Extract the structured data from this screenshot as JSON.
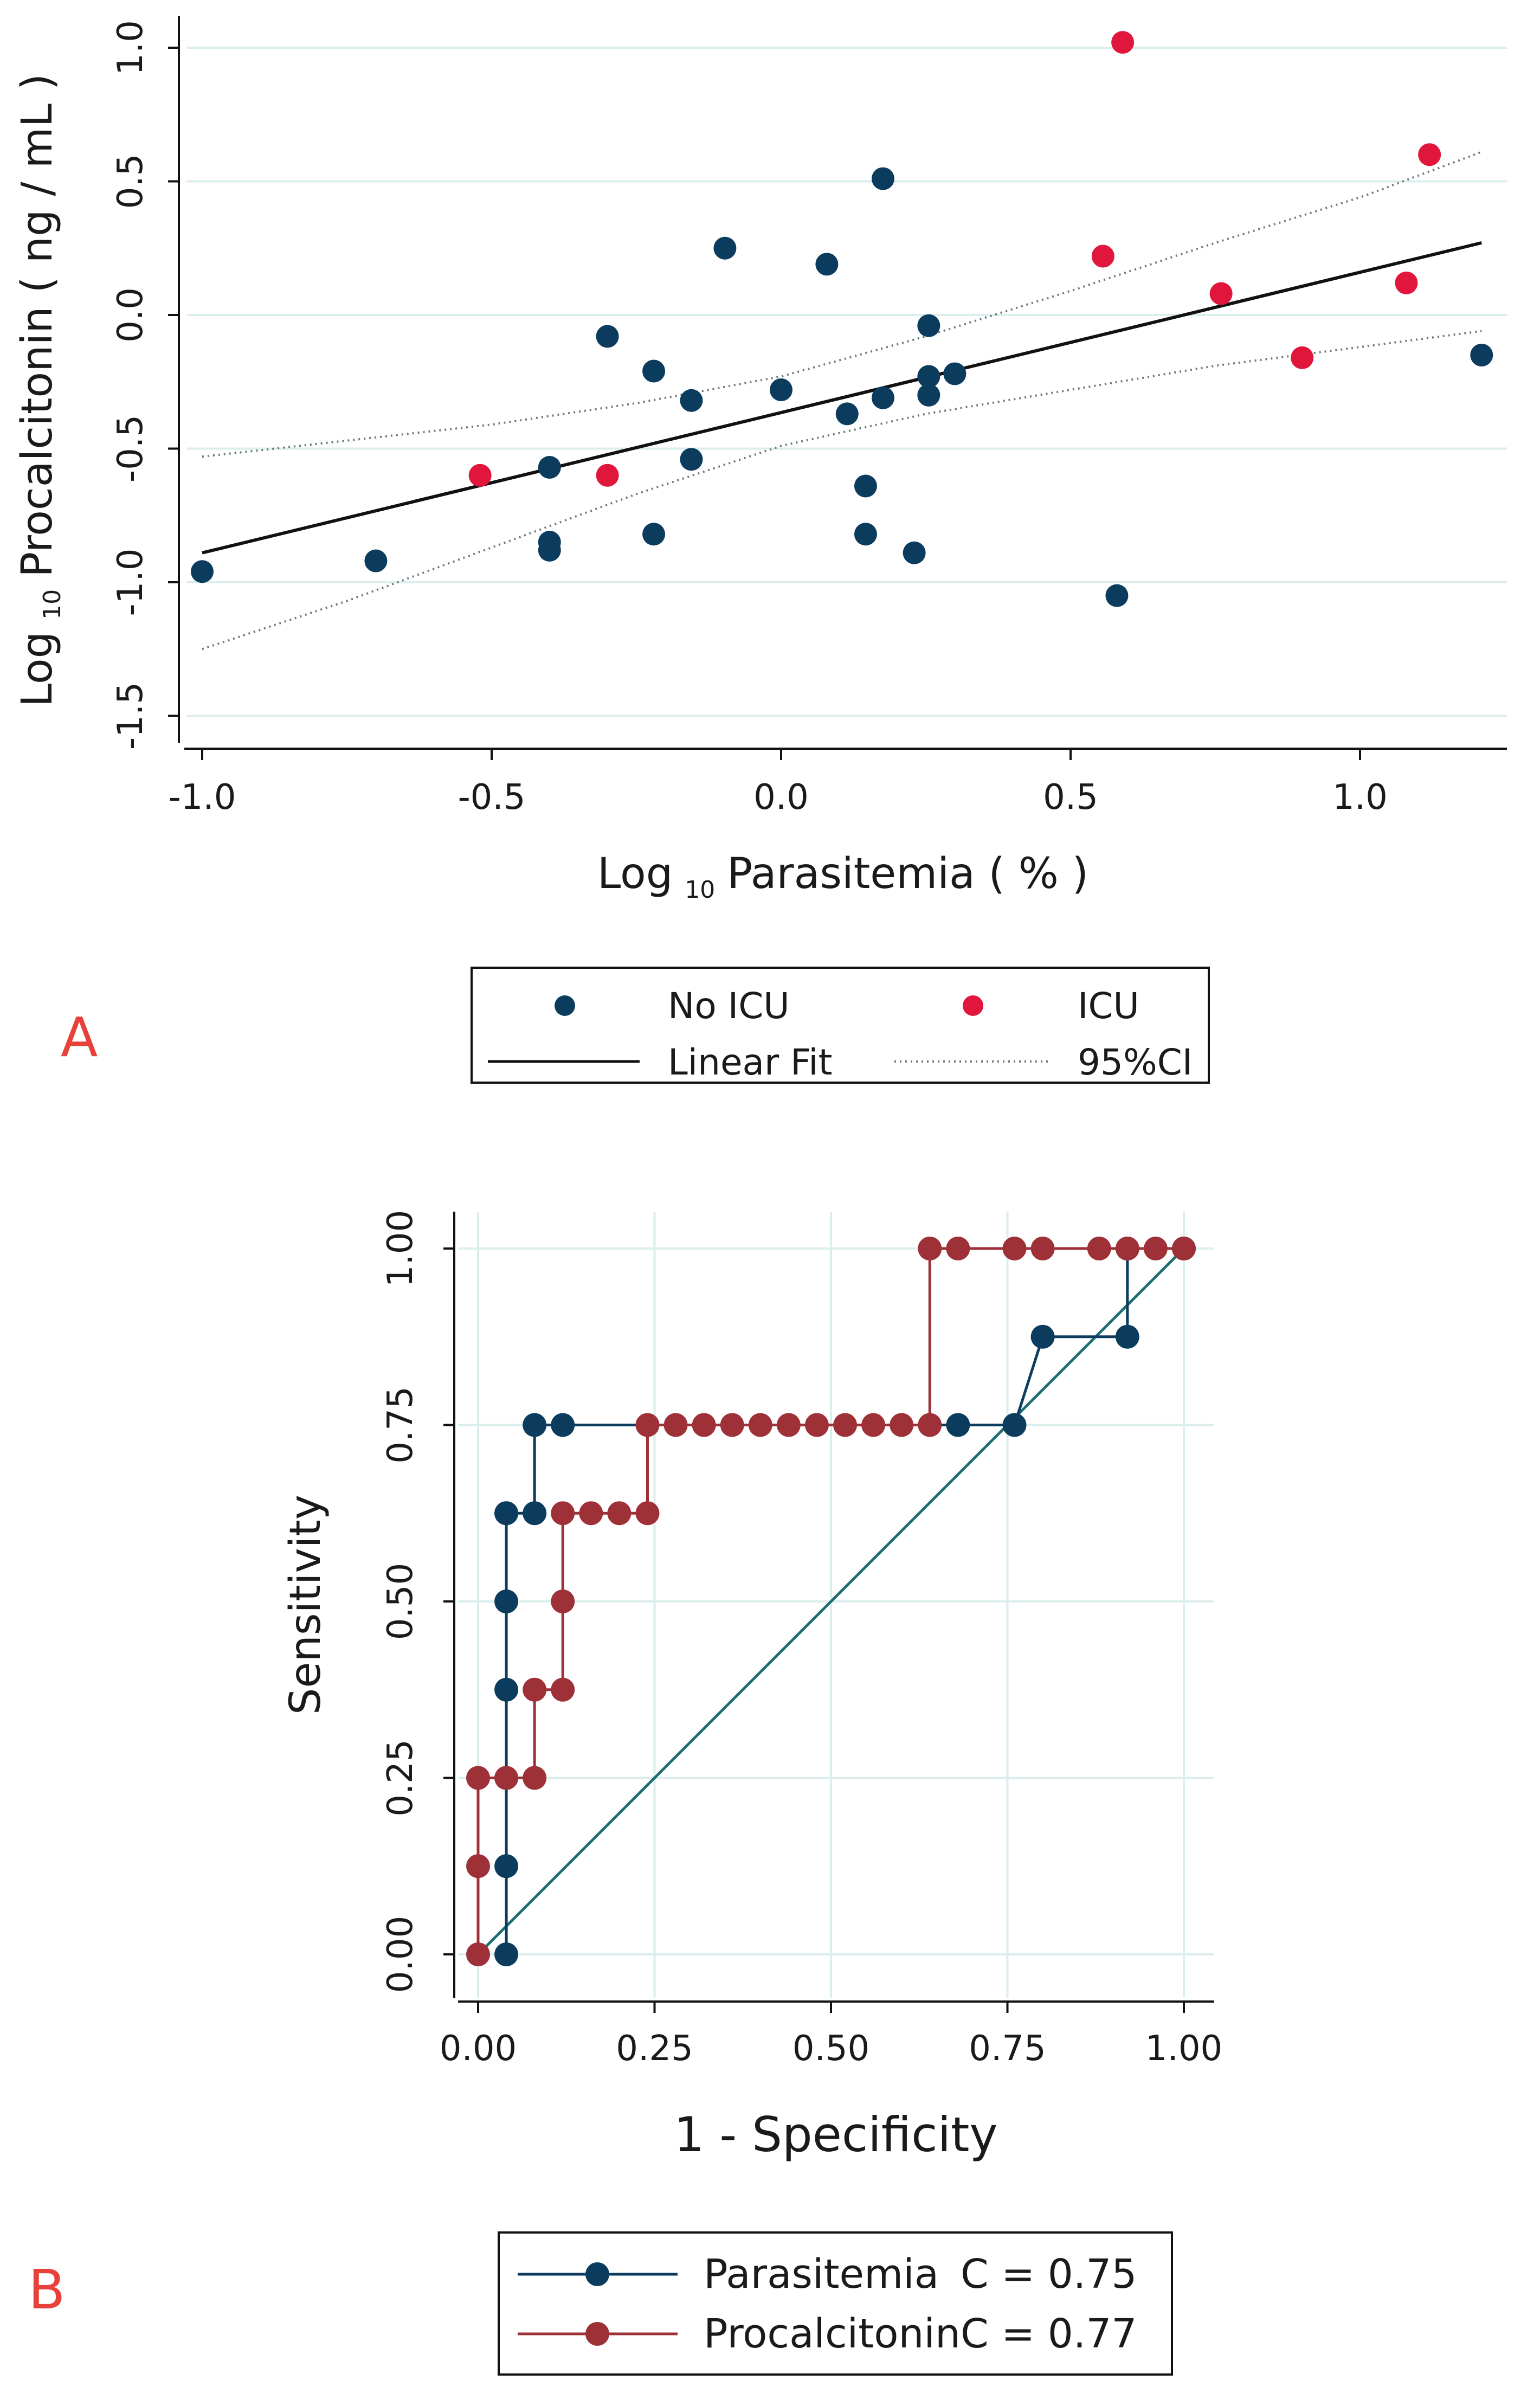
{
  "panels": {
    "a_letter": "A",
    "b_letter": "B"
  },
  "chart_data": [
    {
      "type": "scatter",
      "panel": "A",
      "xlabel_main": "Log",
      "xlabel_sub": "10",
      "xlabel_rest": "Parasitemia ( % )",
      "ylabel_main": "Log",
      "ylabel_sub": "10",
      "ylabel_rest": "Procalcitonin ( ng / mL )",
      "xlim": [
        -1.05,
        1.25
      ],
      "ylim": [
        -1.6,
        1.2
      ],
      "xticks": [
        -1.0,
        -0.5,
        0.0,
        0.5,
        1.0
      ],
      "xtick_labels": [
        "-1.0",
        "-0.5",
        "0.0",
        "0.5",
        "1.0"
      ],
      "yticks": [
        -1.5,
        -1.0,
        -0.5,
        0.0,
        0.5,
        1.0
      ],
      "ytick_labels": [
        "-1.5",
        "-1.0",
        "-0.5",
        "0.0",
        "0.5",
        "1.0"
      ],
      "grid": true,
      "colors": {
        "no_icu": "#0b3c5d",
        "icu": "#e1163c",
        "fit": "#111111",
        "ci": "#6b7b7b",
        "grid": "#dbeeee"
      },
      "series": [
        {
          "name": "No ICU",
          "points": [
            [
              -1.0,
              -0.96
            ],
            [
              -0.7,
              -0.92
            ],
            [
              -0.4,
              -0.57
            ],
            [
              -0.4,
              -0.85
            ],
            [
              -0.4,
              -0.88
            ],
            [
              -0.3,
              -0.08
            ],
            [
              -0.22,
              -0.21
            ],
            [
              -0.22,
              -0.82
            ],
            [
              -0.155,
              -0.32
            ],
            [
              -0.155,
              -0.54
            ],
            [
              -0.097,
              0.25
            ],
            [
              0.0,
              -0.28
            ],
            [
              0.079,
              0.19
            ],
            [
              0.114,
              -0.37
            ],
            [
              0.146,
              -0.64
            ],
            [
              0.146,
              -0.82
            ],
            [
              0.176,
              0.51
            ],
            [
              0.176,
              -0.31
            ],
            [
              0.23,
              -0.89
            ],
            [
              0.255,
              -0.04
            ],
            [
              0.255,
              -0.23
            ],
            [
              0.255,
              -0.3
            ],
            [
              0.3,
              -0.22
            ],
            [
              0.58,
              -1.05
            ],
            [
              1.21,
              -0.15
            ]
          ]
        },
        {
          "name": "ICU",
          "points": [
            [
              -0.52,
              -0.6
            ],
            [
              -0.3,
              -0.6
            ],
            [
              0.556,
              0.22
            ],
            [
              0.59,
              1.02
            ],
            [
              0.76,
              0.08
            ],
            [
              0.9,
              -0.16
            ],
            [
              1.08,
              0.12
            ],
            [
              1.12,
              0.6
            ]
          ]
        }
      ],
      "fit": {
        "name": "Linear Fit",
        "x": [
          -1.0,
          1.21
        ],
        "y": [
          -0.89,
          0.27
        ]
      },
      "ci": {
        "name": "95%CI",
        "x": [
          -1.0,
          -0.75,
          -0.5,
          -0.25,
          0.0,
          0.25,
          0.5,
          0.75,
          1.0,
          1.21
        ],
        "upper": [
          -0.53,
          -0.47,
          -0.41,
          -0.33,
          -0.23,
          -0.08,
          0.09,
          0.27,
          0.44,
          0.61
        ],
        "lower": [
          -1.25,
          -1.07,
          -0.87,
          -0.67,
          -0.49,
          -0.37,
          -0.28,
          -0.19,
          -0.12,
          -0.06
        ]
      },
      "legend": {
        "position": "bottom",
        "items": [
          {
            "label": "No ICU",
            "kind": "dot",
            "color": "#0b3c5d"
          },
          {
            "label": "ICU",
            "kind": "dot",
            "color": "#e1163c"
          },
          {
            "label": "Linear Fit",
            "kind": "line",
            "color": "#111111"
          },
          {
            "label": "95%CI",
            "kind": "dotted",
            "color": "#6b7b7b"
          }
        ]
      }
    },
    {
      "type": "line",
      "panel": "B",
      "xlabel": "1 - Specificity",
      "ylabel": "Sensitivity",
      "xlim": [
        -0.04,
        1.04
      ],
      "ylim": [
        -0.04,
        1.04
      ],
      "xticks": [
        0,
        0.25,
        0.5,
        0.75,
        1.0
      ],
      "xtick_labels": [
        "0.00",
        "0.25",
        "0.50",
        "0.75",
        "1.00"
      ],
      "yticks": [
        0,
        0.25,
        0.5,
        0.75,
        1.0
      ],
      "ytick_labels": [
        "0.00",
        "0.25",
        "0.50",
        "0.75",
        "1.00"
      ],
      "grid": true,
      "reference_line": {
        "x": [
          0,
          1
        ],
        "y": [
          0,
          1
        ],
        "color": "#1d6e72"
      },
      "series": [
        {
          "name": "Parasitemia",
          "stat": "C = 0.75",
          "color": "#0b3c5d",
          "x": [
            0.04,
            0.04,
            0.04,
            0.04,
            0.04,
            0.04,
            0.08,
            0.08,
            0.12,
            0.68,
            0.76,
            0.8,
            0.92,
            0.92,
            1.0
          ],
          "y": [
            0.0,
            0.125,
            0.375,
            0.5,
            0.625,
            0.625,
            0.625,
            0.75,
            0.75,
            0.75,
            0.75,
            0.875,
            0.875,
            1.0,
            1.0
          ]
        },
        {
          "name": "Procalcitonin",
          "stat": "C = 0.77",
          "color": "#9e3038",
          "x": [
            0.0,
            0.0,
            0.0,
            0.04,
            0.04,
            0.08,
            0.08,
            0.12,
            0.12,
            0.12,
            0.16,
            0.2,
            0.24,
            0.24,
            0.28,
            0.32,
            0.36,
            0.4,
            0.44,
            0.48,
            0.52,
            0.56,
            0.6,
            0.64,
            0.64,
            0.68,
            0.76,
            0.8,
            0.88,
            0.92,
            0.96,
            1.0
          ],
          "y": [
            0.0,
            0.125,
            0.25,
            0.25,
            0.25,
            0.25,
            0.375,
            0.375,
            0.5,
            0.625,
            0.625,
            0.625,
            0.625,
            0.75,
            0.75,
            0.75,
            0.75,
            0.75,
            0.75,
            0.75,
            0.75,
            0.75,
            0.75,
            0.75,
            1.0,
            1.0,
            1.0,
            1.0,
            1.0,
            1.0,
            1.0,
            1.0
          ]
        }
      ],
      "legend": {
        "position": "bottom"
      }
    }
  ]
}
